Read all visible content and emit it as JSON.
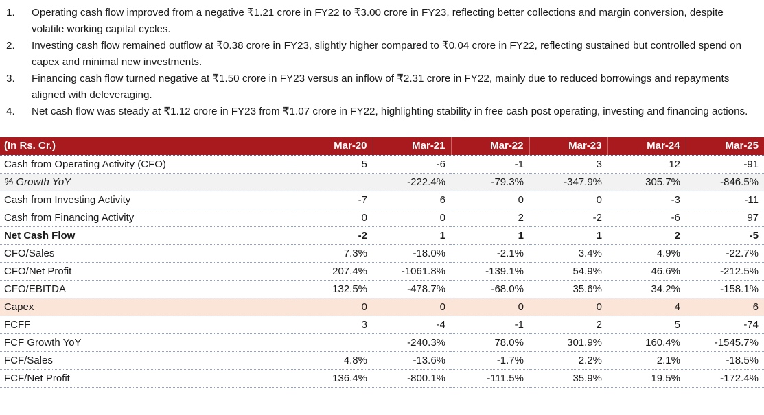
{
  "notes": [
    {
      "number": "1.",
      "text": "Operating cash flow improved from a negative ₹1.21 crore in FY22 to ₹3.00 crore in FY23, reflecting better collections and margin conversion, despite volatile working capital cycles."
    },
    {
      "number": "2.",
      "text": "Investing cash flow remained outflow at ₹0.38 crore in FY23, slightly higher compared to ₹0.04 crore in FY22, reflecting sustained but controlled spend on capex and minimal new investments."
    },
    {
      "number": "3.",
      "text": "Financing cash flow turned negative at ₹1.50 crore in FY23 versus an inflow of ₹2.31 crore in FY22, mainly due to reduced borrowings and repayments aligned with deleveraging."
    },
    {
      "number": "4.",
      "text": "Net cash flow was steady at ₹1.12 crore in FY23 from ₹1.07 crore in FY22, highlighting stability in free cash post operating, investing and financing actions."
    }
  ],
  "table": {
    "unit_label": "(In Rs. Cr.)",
    "columns": [
      "Mar-20",
      "Mar-21",
      "Mar-22",
      "Mar-23",
      "Mar-24",
      "Mar-25"
    ],
    "rows": [
      {
        "label": "Cash from Operating Activity (CFO)",
        "style": "normal",
        "values": [
          "5",
          "-6",
          "-1",
          "3",
          "12",
          "-91"
        ]
      },
      {
        "label": "% Growth YoY",
        "style": "growth",
        "values": [
          "",
          "-222.4%",
          "-79.3%",
          "-347.9%",
          "305.7%",
          "-846.5%"
        ]
      },
      {
        "label": "Cash from Investing Activity",
        "style": "normal",
        "values": [
          "-7",
          "6",
          "0",
          "0",
          "-3",
          "-11"
        ]
      },
      {
        "label": "Cash from Financing Activity",
        "style": "normal",
        "values": [
          "0",
          "0",
          "2",
          "-2",
          "-6",
          "97"
        ]
      },
      {
        "label": "Net Cash Flow",
        "style": "bold",
        "values": [
          "-2",
          "1",
          "1",
          "1",
          "2",
          "-5"
        ]
      },
      {
        "label": "CFO/Sales",
        "style": "normal",
        "values": [
          "7.3%",
          "-18.0%",
          "-2.1%",
          "3.4%",
          "4.9%",
          "-22.7%"
        ]
      },
      {
        "label": "CFO/Net Profit",
        "style": "normal",
        "values": [
          "207.4%",
          "-1061.8%",
          "-139.1%",
          "54.9%",
          "46.6%",
          "-212.5%"
        ]
      },
      {
        "label": "CFO/EBITDA",
        "style": "normal",
        "values": [
          "132.5%",
          "-478.7%",
          "-68.0%",
          "35.6%",
          "34.2%",
          "-158.1%"
        ]
      },
      {
        "label": "Capex",
        "style": "capex",
        "values": [
          "0",
          "0",
          "0",
          "0",
          "4",
          "6"
        ]
      },
      {
        "label": "FCFF",
        "style": "normal",
        "values": [
          "3",
          "-4",
          "-1",
          "2",
          "5",
          "-74"
        ]
      },
      {
        "label": "FCF Growth YoY",
        "style": "normal",
        "values": [
          "",
          "-240.3%",
          "78.0%",
          "301.9%",
          "160.4%",
          "-1545.7%"
        ]
      },
      {
        "label": "FCF/Sales",
        "style": "normal",
        "values": [
          "4.8%",
          "-13.6%",
          "-1.7%",
          "2.2%",
          "2.1%",
          "-18.5%"
        ]
      },
      {
        "label": "FCF/Net Profit",
        "style": "normal",
        "values": [
          "136.4%",
          "-800.1%",
          "-111.5%",
          "35.9%",
          "19.5%",
          "-172.4%"
        ]
      }
    ]
  },
  "colors": {
    "header_bg": "#A81A1D",
    "header_text": "#FFFFFF",
    "growth_row_bg": "#F2F2F2",
    "capex_row_bg": "#FBE5D8",
    "row_border_dotted": "#8FA2C8",
    "body_text": "#1A1A1A"
  }
}
